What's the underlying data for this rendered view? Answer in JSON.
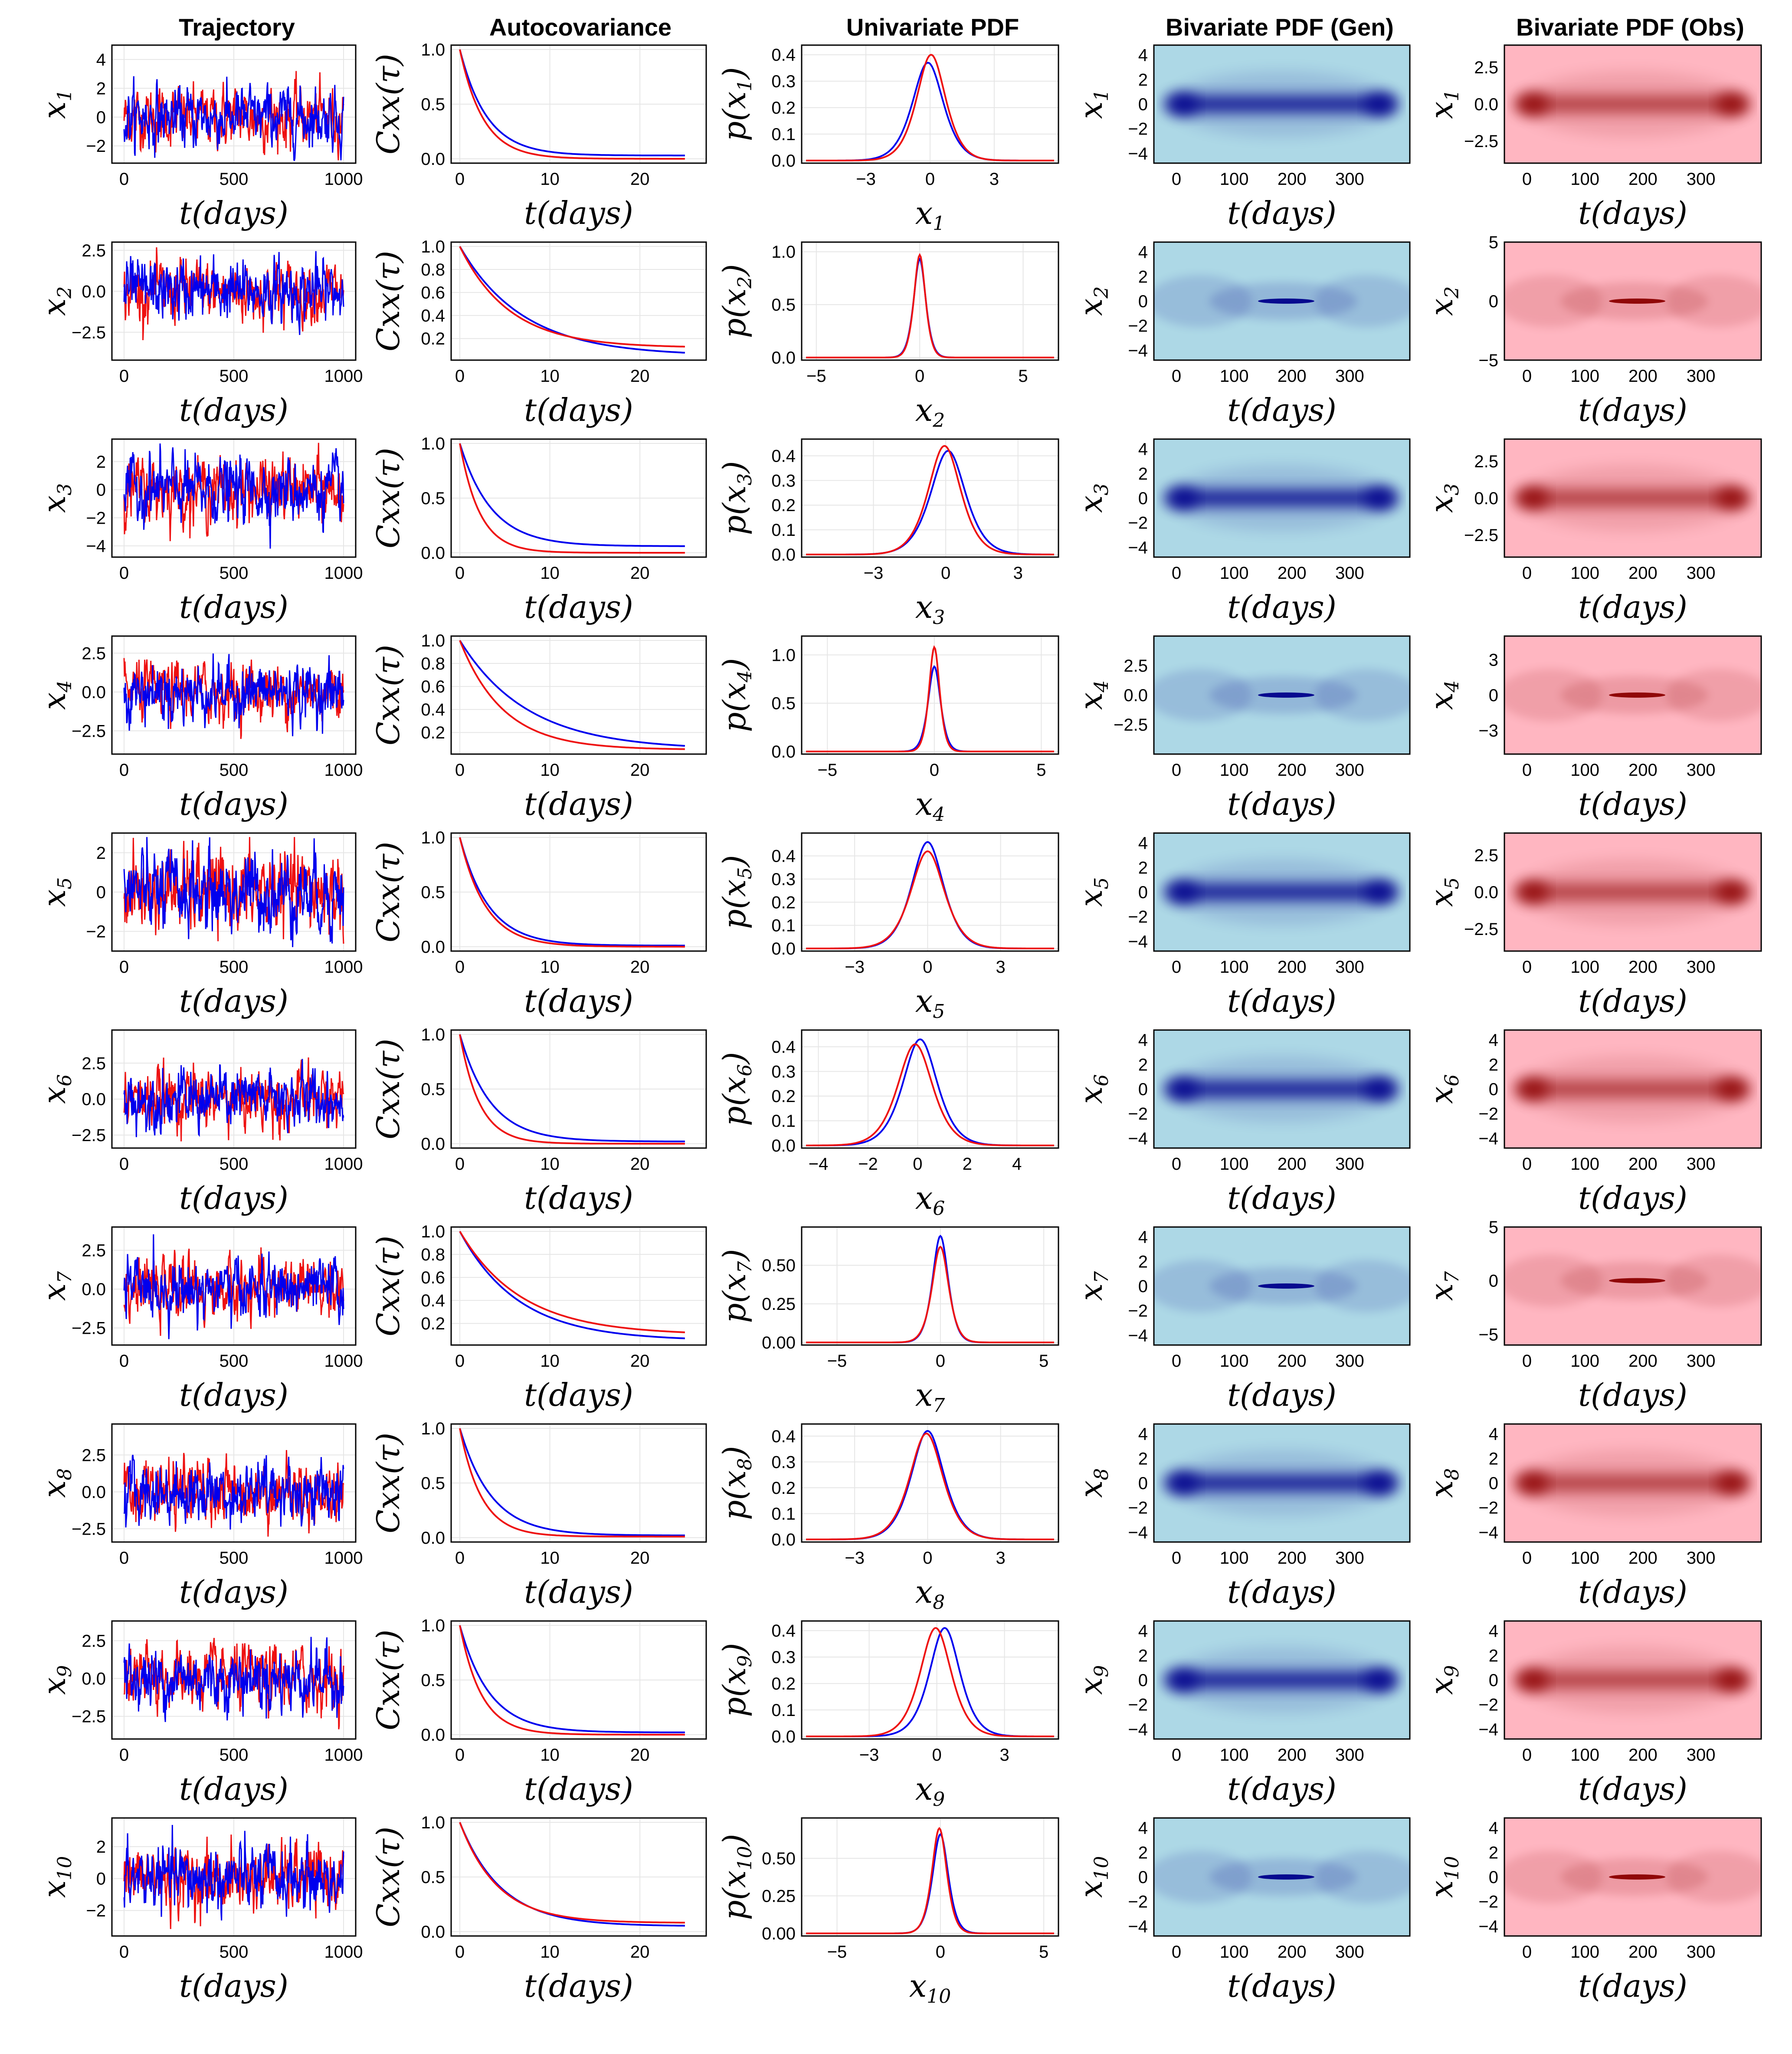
{
  "colors": {
    "generated": "#0000ee",
    "observed": "#ee1111",
    "gen_bg": "#add8e6",
    "gen_dense": "#00008b",
    "obs_bg": "#ffb6c1",
    "obs_dense": "#8b0000",
    "grid": "#e6e6e6"
  },
  "column_titles": [
    "Trajectory",
    "Autocovariance",
    "Univariate PDF",
    "Bivariate PDF (Gen)",
    "Bivariate PDF (Obs)"
  ],
  "labels": {
    "time_axis": "t(days)",
    "acf_ylabel": "Cxx(τ)",
    "var_prefix": "x",
    "pdf_prefix": "p"
  },
  "chart_data": [
    {
      "type": "line",
      "panel": "trajectory",
      "xlim": [
        0,
        1000
      ],
      "xticks": [
        0,
        500,
        1000
      ],
      "series": [
        {
          "values": []
        },
        {
          "values": []
        }
      ]
    },
    {
      "type": "line",
      "panel": "autocovariance",
      "xlim": [
        0,
        25
      ],
      "xticks": [
        0,
        10,
        20
      ],
      "ylim": [
        0,
        1
      ]
    },
    {
      "type": "line",
      "panel": "univariate_pdf"
    },
    {
      "type": "heatmap",
      "panel": "bivariate_gen",
      "xlim": [
        0,
        365
      ],
      "xticks": [
        0,
        100,
        200,
        300
      ]
    },
    {
      "type": "heatmap",
      "panel": "bivariate_obs",
      "xlim": [
        0,
        365
      ],
      "xticks": [
        0,
        100,
        200,
        300
      ]
    }
  ],
  "rows": [
    {
      "var": "1",
      "traj_yticks": [
        "4",
        "2",
        "0",
        "−2"
      ],
      "traj_amp": 1.0,
      "traj_ylim": [
        -3.2,
        5.0
      ],
      "acf_yticks": [
        "1.0",
        "0.5",
        "0.0"
      ],
      "acf_ylim": [
        0,
        1.0
      ],
      "acf_tau_gen": 3.0,
      "acf_tau_obs": 2.6,
      "acf_floor_gen": 0.03,
      "acf_floor_obs": 0.0,
      "pdf_xticks": [
        "−3",
        "0",
        "3"
      ],
      "pdf_xlim": [
        -5.8,
        5.8
      ],
      "pdf_yticks": [
        "0.4",
        "0.3",
        "0.2",
        "0.1",
        "0.0"
      ],
      "pdf_ylim": [
        0,
        0.42
      ],
      "pdf_gen": {
        "mu": -0.1,
        "sigma": 1.05,
        "peak": 0.37
      },
      "pdf_obs": {
        "mu": 0.05,
        "sigma": 0.98,
        "peak": 0.4
      },
      "gen_yticks": [
        "4",
        "2",
        "0",
        "−2",
        "−4"
      ],
      "gen_ylim": [
        -4.8,
        4.8
      ],
      "gen_kind": "band",
      "obs_yticks": [
        "2.5",
        "0.0",
        "−2.5"
      ],
      "obs_ylim": [
        -4.0,
        4.0
      ],
      "obs_kind": "band"
    },
    {
      "var": "2",
      "traj_yticks": [
        "2.5",
        "0.0",
        "−2.5"
      ],
      "traj_amp": 0.9,
      "traj_ylim": [
        -4.2,
        3.0
      ],
      "acf_yticks": [
        "1.0",
        "0.8",
        "0.6",
        "0.4",
        "0.2"
      ],
      "acf_ylim": [
        0.05,
        1.0
      ],
      "acf_tau_gen": 7.0,
      "acf_tau_obs": 5.5,
      "acf_floor_gen": 0.05,
      "acf_floor_obs": 0.12,
      "pdf_xticks": [
        "−5",
        "0",
        "5"
      ],
      "pdf_xlim": [
        -5.5,
        6.5
      ],
      "pdf_yticks": [
        "1.0",
        "0.5",
        "0.0"
      ],
      "pdf_ylim": [
        0,
        1.05
      ],
      "pdf_gen": {
        "mu": 0.0,
        "sigma": 0.42,
        "peak": 0.93
      },
      "pdf_obs": {
        "mu": 0.0,
        "sigma": 0.4,
        "peak": 0.97
      },
      "gen_yticks": [
        "4",
        "2",
        "0",
        "−2",
        "−4"
      ],
      "gen_ylim": [
        -4.8,
        4.8
      ],
      "gen_kind": "pinch",
      "obs_yticks": [
        "5",
        "0",
        "−5"
      ],
      "obs_ylim": [
        -5.0,
        5.0
      ],
      "obs_kind": "pinch"
    },
    {
      "var": "3",
      "traj_yticks": [
        "2",
        "0",
        "−2",
        "−4"
      ],
      "traj_amp": 1.1,
      "traj_ylim": [
        -4.8,
        3.6
      ],
      "acf_yticks": [
        "1.0",
        "0.5",
        "0.0"
      ],
      "acf_ylim": [
        0,
        1.0
      ],
      "acf_tau_gen": 3.5,
      "acf_tau_obs": 2.2,
      "acf_floor_gen": 0.06,
      "acf_floor_obs": 0.0,
      "pdf_xticks": [
        "−3",
        "0",
        "3"
      ],
      "pdf_xlim": [
        -5.8,
        4.5
      ],
      "pdf_yticks": [
        "0.4",
        "0.3",
        "0.2",
        "0.1",
        "0.0"
      ],
      "pdf_ylim": [
        0,
        0.45
      ],
      "pdf_gen": {
        "mu": 0.1,
        "sigma": 1.05,
        "peak": 0.42
      },
      "pdf_obs": {
        "mu": -0.05,
        "sigma": 0.98,
        "peak": 0.44
      },
      "gen_yticks": [
        "4",
        "2",
        "0",
        "−2",
        "−4"
      ],
      "gen_ylim": [
        -4.8,
        4.8
      ],
      "gen_kind": "band",
      "obs_yticks": [
        "2.5",
        "0.0",
        "−2.5"
      ],
      "obs_ylim": [
        -4.0,
        4.0
      ],
      "obs_kind": "band"
    },
    {
      "var": "4",
      "traj_yticks": [
        "2.5",
        "0.0",
        "−2.5"
      ],
      "traj_amp": 0.9,
      "traj_ylim": [
        -4.0,
        3.6
      ],
      "acf_yticks": [
        "1.0",
        "0.8",
        "0.6",
        "0.4",
        "0.2"
      ],
      "acf_ylim": [
        0.05,
        1.0
      ],
      "acf_tau_gen": 7.5,
      "acf_tau_obs": 4.8,
      "acf_floor_gen": 0.05,
      "acf_floor_obs": 0.05,
      "pdf_xticks": [
        "−5",
        "0",
        "5"
      ],
      "pdf_xlim": [
        -6.0,
        5.6
      ],
      "pdf_yticks": [
        "1.0",
        "0.5",
        "0.0"
      ],
      "pdf_ylim": [
        0,
        1.15
      ],
      "pdf_gen": {
        "mu": 0.0,
        "sigma": 0.42,
        "peak": 0.88
      },
      "pdf_obs": {
        "mu": 0.0,
        "sigma": 0.36,
        "peak": 1.08
      },
      "gen_yticks": [
        "2.5",
        "0.0",
        "−2.5"
      ],
      "gen_ylim": [
        -5.0,
        5.0
      ],
      "gen_kind": "pinch",
      "obs_yticks": [
        "3",
        "0",
        "−3"
      ],
      "obs_ylim": [
        -5.0,
        5.0
      ],
      "obs_kind": "pinch"
    },
    {
      "var": "5",
      "traj_yticks": [
        "2",
        "0",
        "−2"
      ],
      "traj_amp": 1.0,
      "traj_ylim": [
        -3.0,
        3.0
      ],
      "acf_yticks": [
        "1.0",
        "0.5",
        "0.0"
      ],
      "acf_ylim": [
        0,
        1.0
      ],
      "acf_tau_gen": 3.2,
      "acf_tau_obs": 2.9,
      "acf_floor_gen": 0.01,
      "acf_floor_obs": 0.0,
      "pdf_xticks": [
        "−3",
        "0",
        "3"
      ],
      "pdf_xlim": [
        -5.0,
        5.2
      ],
      "pdf_yticks": [
        "0.4",
        "0.3",
        "0.2",
        "0.1",
        "0.0"
      ],
      "pdf_ylim": [
        0,
        0.48
      ],
      "pdf_gen": {
        "mu": 0.0,
        "sigma": 0.95,
        "peak": 0.46
      },
      "pdf_obs": {
        "mu": 0.0,
        "sigma": 1.0,
        "peak": 0.42
      },
      "gen_yticks": [
        "4",
        "2",
        "0",
        "−2",
        "−4"
      ],
      "gen_ylim": [
        -4.8,
        4.8
      ],
      "gen_kind": "band",
      "obs_yticks": [
        "2.5",
        "0.0",
        "−2.5"
      ],
      "obs_ylim": [
        -4.0,
        4.0
      ],
      "obs_kind": "band"
    },
    {
      "var": "6",
      "traj_yticks": [
        "2.5",
        "0.0",
        "−2.5"
      ],
      "traj_amp": 1.0,
      "traj_ylim": [
        -3.4,
        4.8
      ],
      "acf_yticks": [
        "1.0",
        "0.5",
        "0.0"
      ],
      "acf_ylim": [
        0,
        1.0
      ],
      "acf_tau_gen": 3.4,
      "acf_tau_obs": 2.2,
      "acf_floor_gen": 0.02,
      "acf_floor_obs": 0.0,
      "pdf_xticks": [
        "−4",
        "−2",
        "0",
        "2",
        "4"
      ],
      "pdf_xlim": [
        -4.5,
        5.5
      ],
      "pdf_yticks": [
        "0.4",
        "0.3",
        "0.2",
        "0.1",
        "0.0"
      ],
      "pdf_ylim": [
        0,
        0.45
      ],
      "pdf_gen": {
        "mu": 0.1,
        "sigma": 1.0,
        "peak": 0.43
      },
      "pdf_obs": {
        "mu": -0.1,
        "sigma": 1.02,
        "peak": 0.41
      },
      "gen_yticks": [
        "4",
        "2",
        "0",
        "−2",
        "−4"
      ],
      "gen_ylim": [
        -4.8,
        4.8
      ],
      "gen_kind": "band",
      "obs_yticks": [
        "4",
        "2",
        "0",
        "−2",
        "−4"
      ],
      "obs_ylim": [
        -4.8,
        4.8
      ],
      "obs_kind": "band"
    },
    {
      "var": "7",
      "traj_yticks": [
        "2.5",
        "0.0",
        "−2.5"
      ],
      "traj_amp": 0.9,
      "traj_ylim": [
        -3.6,
        4.0
      ],
      "acf_yticks": [
        "1.0",
        "0.8",
        "0.6",
        "0.4",
        "0.2"
      ],
      "acf_ylim": [
        0.05,
        1.0
      ],
      "acf_tau_gen": 6.5,
      "acf_tau_obs": 6.8,
      "acf_floor_gen": 0.05,
      "acf_floor_obs": 0.1,
      "pdf_xticks": [
        "−5",
        "0",
        "5"
      ],
      "pdf_xlim": [
        -6.5,
        5.5
      ],
      "pdf_yticks": [
        "0.50",
        "0.25",
        "0.00"
      ],
      "pdf_ylim": [
        0,
        0.72
      ],
      "pdf_gen": {
        "mu": 0.0,
        "sigma": 0.55,
        "peak": 0.69
      },
      "pdf_obs": {
        "mu": 0.0,
        "sigma": 0.58,
        "peak": 0.62
      },
      "gen_yticks": [
        "4",
        "2",
        "0",
        "−2",
        "−4"
      ],
      "gen_ylim": [
        -4.8,
        4.8
      ],
      "gen_kind": "pinch",
      "obs_yticks": [
        "5",
        "0",
        "−5"
      ],
      "obs_ylim": [
        -6.0,
        5.0
      ],
      "obs_kind": "pinch"
    },
    {
      "var": "8",
      "traj_yticks": [
        "2.5",
        "0.0",
        "−2.5"
      ],
      "traj_amp": 1.0,
      "traj_ylim": [
        -3.4,
        4.6
      ],
      "acf_yticks": [
        "1.0",
        "0.5",
        "0.0"
      ],
      "acf_ylim": [
        0,
        1.0
      ],
      "acf_tau_gen": 3.5,
      "acf_tau_obs": 2.4,
      "acf_floor_gen": 0.02,
      "acf_floor_obs": 0.01,
      "pdf_xticks": [
        "−3",
        "0",
        "3"
      ],
      "pdf_xlim": [
        -5.0,
        5.2
      ],
      "pdf_yticks": [
        "0.4",
        "0.3",
        "0.2",
        "0.1",
        "0.0"
      ],
      "pdf_ylim": [
        0,
        0.43
      ],
      "pdf_gen": {
        "mu": 0.0,
        "sigma": 0.98,
        "peak": 0.42
      },
      "pdf_obs": {
        "mu": -0.05,
        "sigma": 0.99,
        "peak": 0.41
      },
      "gen_yticks": [
        "4",
        "2",
        "0",
        "−2",
        "−4"
      ],
      "gen_ylim": [
        -4.8,
        4.8
      ],
      "gen_kind": "band",
      "obs_yticks": [
        "4",
        "2",
        "0",
        "−2",
        "−4"
      ],
      "obs_ylim": [
        -4.8,
        4.8
      ],
      "obs_kind": "band"
    },
    {
      "var": "9",
      "traj_yticks": [
        "2.5",
        "0.0",
        "−2.5"
      ],
      "traj_amp": 1.0,
      "traj_ylim": [
        -4.0,
        3.8
      ],
      "acf_yticks": [
        "1.0",
        "0.5",
        "0.0"
      ],
      "acf_ylim": [
        0,
        1.0
      ],
      "acf_tau_gen": 3.3,
      "acf_tau_obs": 2.4,
      "acf_floor_gen": 0.02,
      "acf_floor_obs": 0.0,
      "pdf_xticks": [
        "−3",
        "0",
        "3"
      ],
      "pdf_xlim": [
        -5.8,
        5.2
      ],
      "pdf_yticks": [
        "0.4",
        "0.3",
        "0.2",
        "0.1",
        "0.0"
      ],
      "pdf_ylim": [
        0,
        0.42
      ],
      "pdf_gen": {
        "mu": 0.35,
        "sigma": 0.98,
        "peak": 0.41
      },
      "pdf_obs": {
        "mu": -0.05,
        "sigma": 1.0,
        "peak": 0.41
      },
      "gen_yticks": [
        "4",
        "2",
        "0",
        "−2",
        "−4"
      ],
      "gen_ylim": [
        -4.8,
        4.8
      ],
      "gen_kind": "band",
      "obs_yticks": [
        "4",
        "2",
        "0",
        "−2",
        "−4"
      ],
      "obs_ylim": [
        -4.8,
        4.8
      ],
      "obs_kind": "band"
    },
    {
      "var": "10",
      "traj_yticks": [
        "2",
        "0",
        "−2"
      ],
      "traj_amp": 1.0,
      "traj_ylim": [
        -3.6,
        3.8
      ],
      "acf_yticks": [
        "1.0",
        "0.5",
        "0.0"
      ],
      "acf_ylim": [
        0,
        1.0
      ],
      "acf_tau_gen": 4.6,
      "acf_tau_obs": 4.2,
      "acf_floor_gen": 0.05,
      "acf_floor_obs": 0.08,
      "pdf_xticks": [
        "−5",
        "0",
        "5"
      ],
      "pdf_xlim": [
        -6.5,
        5.5
      ],
      "pdf_yticks": [
        "0.50",
        "0.25",
        "0.00"
      ],
      "pdf_ylim": [
        0,
        0.74
      ],
      "pdf_gen": {
        "mu": 0.0,
        "sigma": 0.55,
        "peak": 0.66
      },
      "pdf_obs": {
        "mu": -0.05,
        "sigma": 0.52,
        "peak": 0.7
      },
      "gen_yticks": [
        "4",
        "2",
        "0",
        "−2",
        "−4"
      ],
      "gen_ylim": [
        -4.8,
        4.8
      ],
      "gen_kind": "pinch",
      "obs_yticks": [
        "4",
        "2",
        "0",
        "−2",
        "−4"
      ],
      "obs_ylim": [
        -4.8,
        4.8
      ],
      "obs_kind": "pinch"
    }
  ]
}
